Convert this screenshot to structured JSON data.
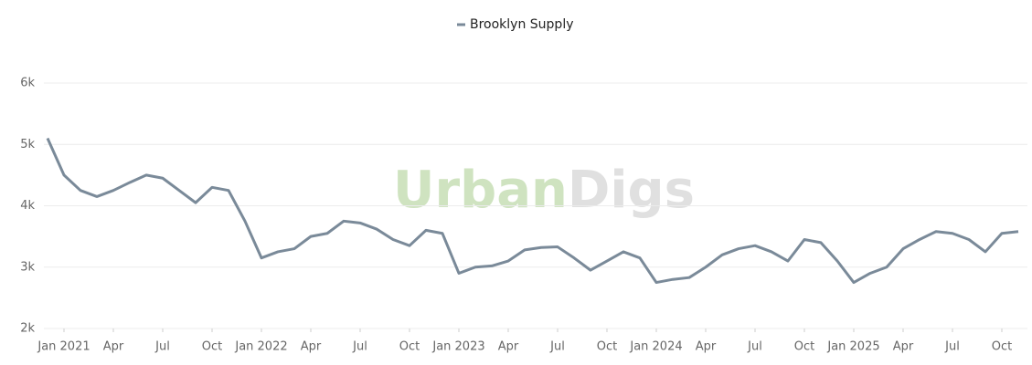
{
  "chart_data": {
    "type": "line",
    "watermark": [
      "Urban",
      "Digs"
    ],
    "watermark_colors": [
      "#cfe3c0",
      "#e0e0e0"
    ],
    "x": [
      "2020-12",
      "2021-01",
      "2021-02",
      "2021-03",
      "2021-04",
      "2021-05",
      "2021-06",
      "2021-07",
      "2021-08",
      "2021-09",
      "2021-10",
      "2021-11",
      "2021-12",
      "2022-01",
      "2022-02",
      "2022-03",
      "2022-04",
      "2022-05",
      "2022-06",
      "2022-07",
      "2022-08",
      "2022-09",
      "2022-10",
      "2022-11",
      "2022-12",
      "2023-01",
      "2023-02",
      "2023-03",
      "2023-04",
      "2023-05",
      "2023-06",
      "2023-07",
      "2023-08",
      "2023-09",
      "2023-10",
      "2023-11",
      "2023-12",
      "2024-01",
      "2024-02",
      "2024-03",
      "2024-04",
      "2024-05",
      "2024-06",
      "2024-07",
      "2024-08",
      "2024-09",
      "2024-10",
      "2024-11",
      "2024-12",
      "2025-01",
      "2025-02",
      "2025-03",
      "2025-04",
      "2025-05",
      "2025-06",
      "2025-07",
      "2025-08",
      "2025-09",
      "2025-10",
      "2025-11"
    ],
    "series": [
      {
        "name": "Brooklyn Supply",
        "color": "#7a8a99",
        "values": [
          5100,
          4500,
          4250,
          4150,
          4250,
          4380,
          4500,
          4450,
          4250,
          4050,
          4300,
          4250,
          3750,
          3150,
          3250,
          3300,
          3500,
          3550,
          3750,
          3720,
          3620,
          3450,
          3350,
          3600,
          3550,
          2900,
          3000,
          3020,
          3100,
          3280,
          3320,
          3330,
          3150,
          2950,
          3100,
          3250,
          3150,
          2750,
          2800,
          2830,
          3000,
          3200,
          3300,
          3350,
          3250,
          3100,
          3450,
          3400,
          3100,
          2750,
          2900,
          3000,
          3300,
          3450,
          3580,
          3550,
          3450,
          3250,
          3550,
          3580
        ]
      }
    ],
    "ylim": [
      2000,
      6000
    ],
    "yticks": [
      {
        "value": 2000,
        "label": "2k"
      },
      {
        "value": 3000,
        "label": "3k"
      },
      {
        "value": 4000,
        "label": "4k"
      },
      {
        "value": 5000,
        "label": "5k"
      },
      {
        "value": 6000,
        "label": "6k"
      }
    ],
    "xticks": [
      {
        "value": "2021-01",
        "label": "Jan 2021"
      },
      {
        "value": "2021-04",
        "label": "Apr"
      },
      {
        "value": "2021-07",
        "label": "Jul"
      },
      {
        "value": "2021-10",
        "label": "Oct"
      },
      {
        "value": "2022-01",
        "label": "Jan 2022"
      },
      {
        "value": "2022-04",
        "label": "Apr"
      },
      {
        "value": "2022-07",
        "label": "Jul"
      },
      {
        "value": "2022-10",
        "label": "Oct"
      },
      {
        "value": "2023-01",
        "label": "Jan 2023"
      },
      {
        "value": "2023-04",
        "label": "Apr"
      },
      {
        "value": "2023-07",
        "label": "Jul"
      },
      {
        "value": "2023-10",
        "label": "Oct"
      },
      {
        "value": "2024-01",
        "label": "Jan 2024"
      },
      {
        "value": "2024-04",
        "label": "Apr"
      },
      {
        "value": "2024-07",
        "label": "Jul"
      },
      {
        "value": "2024-10",
        "label": "Oct"
      },
      {
        "value": "2025-01",
        "label": "Jan 2025"
      },
      {
        "value": "2025-04",
        "label": "Apr"
      },
      {
        "value": "2025-07",
        "label": "Jul"
      },
      {
        "value": "2025-10",
        "label": "Oct"
      }
    ],
    "grid": true
  }
}
